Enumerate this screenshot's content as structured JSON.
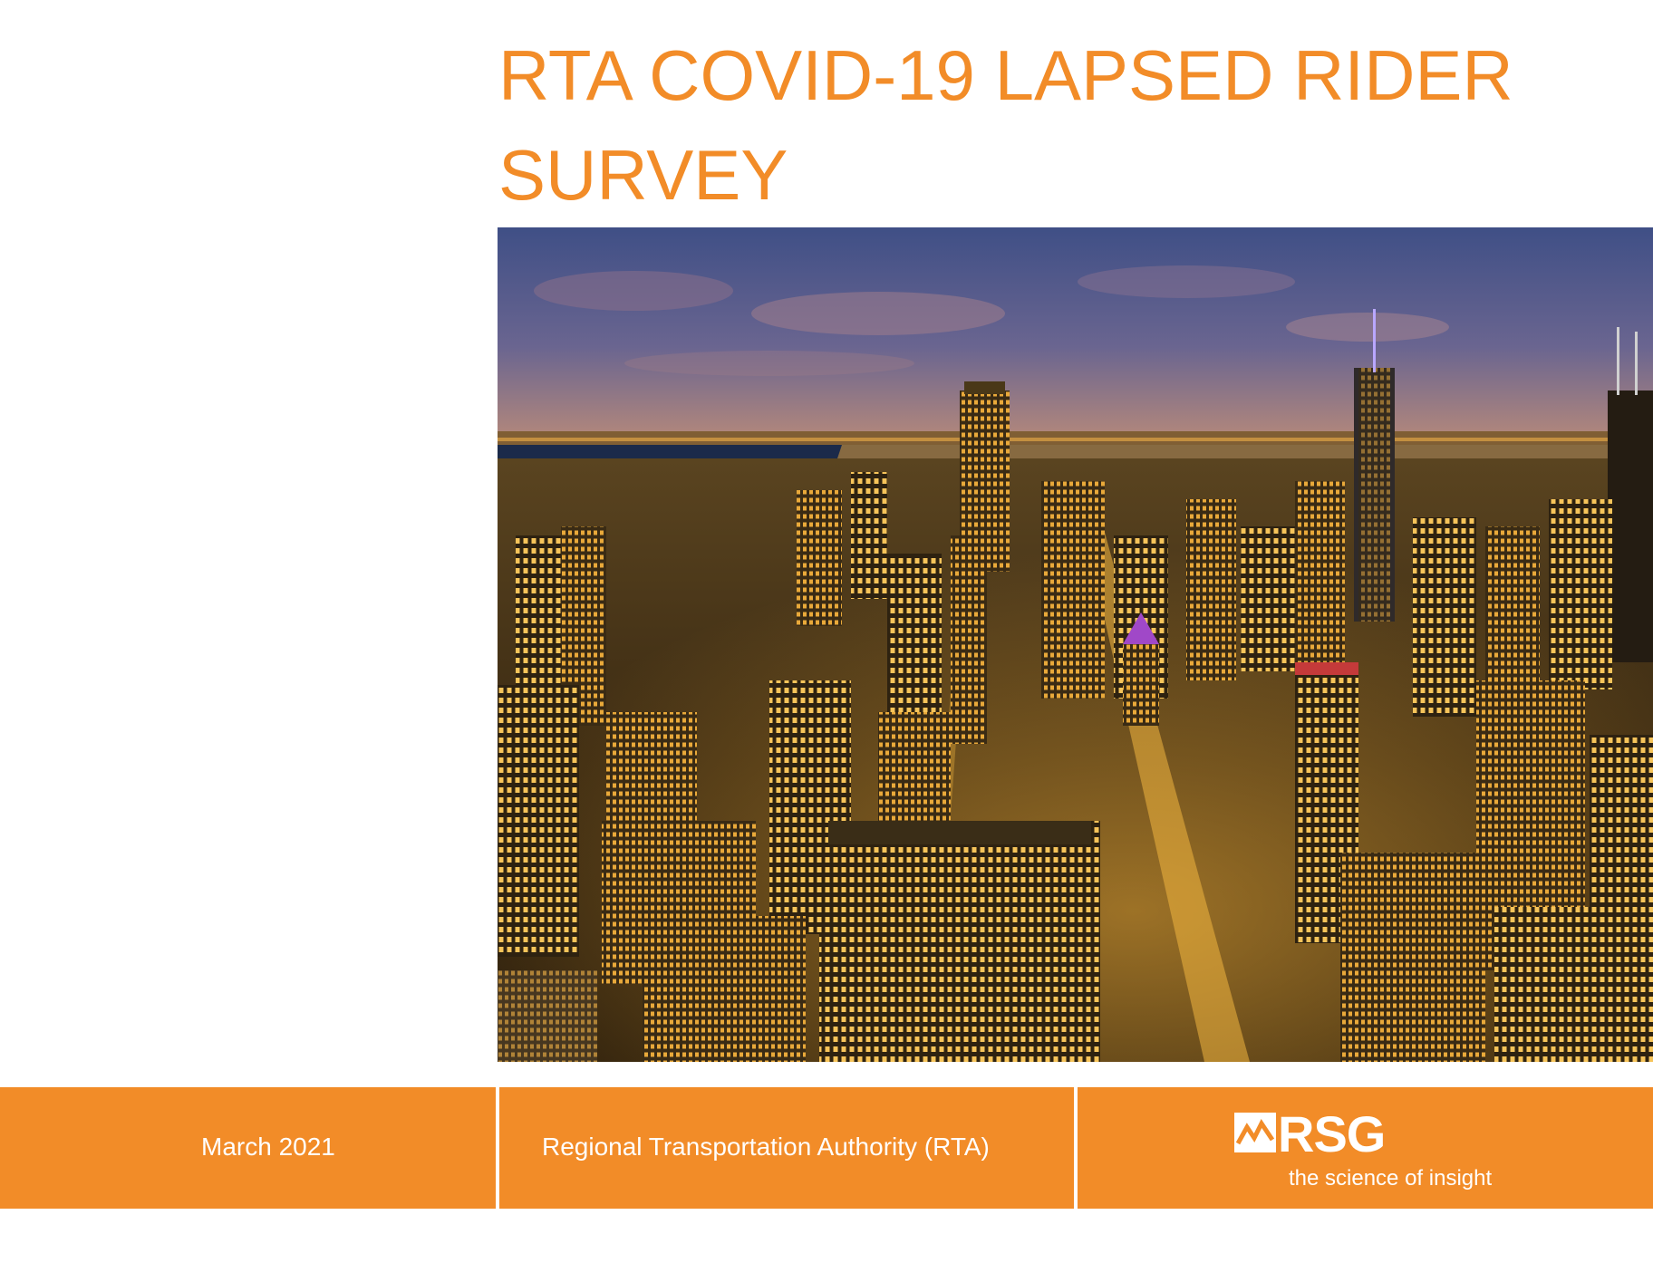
{
  "title": "RTA COVID-19 LAPSED RIDER SURVEY",
  "cover_image": {
    "subject": "aerial-night-city-skyline-photo"
  },
  "footer": {
    "date": "March 2021",
    "organization": "Regional Transportation Authority (RTA)",
    "logo": {
      "name": "RSG",
      "tagline": "the science of insight"
    }
  },
  "colors": {
    "accent": "#f28c28",
    "footer_text": "#ffffff",
    "background": "#ffffff"
  }
}
